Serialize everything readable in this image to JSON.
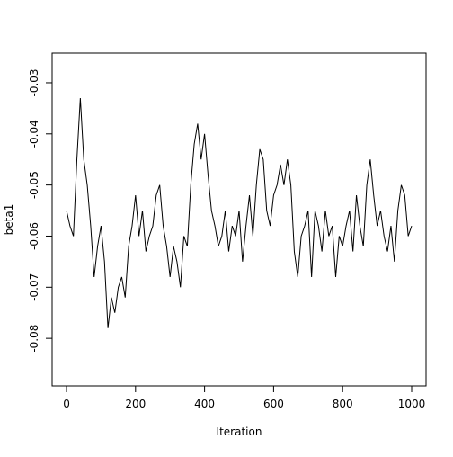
{
  "chart_data": {
    "type": "line",
    "x_label": "Iteration",
    "y_label": "beta1",
    "x": [
      0,
      10,
      20,
      30,
      40,
      50,
      60,
      70,
      80,
      90,
      100,
      110,
      120,
      130,
      140,
      150,
      160,
      170,
      180,
      190,
      200,
      210,
      220,
      230,
      240,
      250,
      260,
      270,
      280,
      290,
      300,
      310,
      320,
      330,
      340,
      350,
      360,
      370,
      380,
      390,
      400,
      410,
      420,
      430,
      440,
      450,
      460,
      470,
      480,
      490,
      500,
      510,
      520,
      530,
      540,
      550,
      560,
      570,
      580,
      590,
      600,
      610,
      620,
      630,
      640,
      650,
      660,
      670,
      680,
      690,
      700,
      710,
      720,
      730,
      740,
      750,
      760,
      770,
      780,
      790,
      800,
      810,
      820,
      830,
      840,
      850,
      860,
      870,
      880,
      890,
      900,
      910,
      920,
      930,
      940,
      950,
      960,
      970,
      980,
      990,
      1000
    ],
    "series": [
      {
        "name": "beta1",
        "color": "#000000",
        "values": [
          -0.055,
          -0.058,
          -0.06,
          -0.045,
          -0.033,
          -0.045,
          -0.05,
          -0.058,
          -0.068,
          -0.062,
          -0.058,
          -0.065,
          -0.078,
          -0.072,
          -0.075,
          -0.07,
          -0.068,
          -0.072,
          -0.062,
          -0.058,
          -0.052,
          -0.06,
          -0.055,
          -0.063,
          -0.06,
          -0.058,
          -0.052,
          -0.05,
          -0.058,
          -0.062,
          -0.068,
          -0.062,
          -0.065,
          -0.07,
          -0.06,
          -0.062,
          -0.05,
          -0.042,
          -0.038,
          -0.045,
          -0.04,
          -0.048,
          -0.055,
          -0.058,
          -0.062,
          -0.06,
          -0.055,
          -0.063,
          -0.058,
          -0.06,
          -0.055,
          -0.065,
          -0.058,
          -0.052,
          -0.06,
          -0.05,
          -0.043,
          -0.045,
          -0.055,
          -0.058,
          -0.052,
          -0.05,
          -0.046,
          -0.05,
          -0.045,
          -0.05,
          -0.063,
          -0.068,
          -0.06,
          -0.058,
          -0.055,
          -0.068,
          -0.055,
          -0.058,
          -0.063,
          -0.055,
          -0.06,
          -0.058,
          -0.068,
          -0.06,
          -0.062,
          -0.058,
          -0.055,
          -0.063,
          -0.052,
          -0.058,
          -0.062,
          -0.05,
          -0.045,
          -0.052,
          -0.058,
          -0.055,
          -0.06,
          -0.063,
          -0.058,
          -0.065,
          -0.055,
          -0.05,
          -0.052,
          -0.06,
          -0.058
        ]
      }
    ],
    "xlim": [
      -41.7,
      1041.7
    ],
    "xticks": [
      0,
      200,
      400,
      600,
      800,
      1000
    ],
    "ylim": [
      -0.0893,
      -0.0242
    ],
    "yticks": [
      -0.08,
      -0.07,
      -0.06,
      -0.05,
      -0.04,
      -0.03
    ]
  }
}
